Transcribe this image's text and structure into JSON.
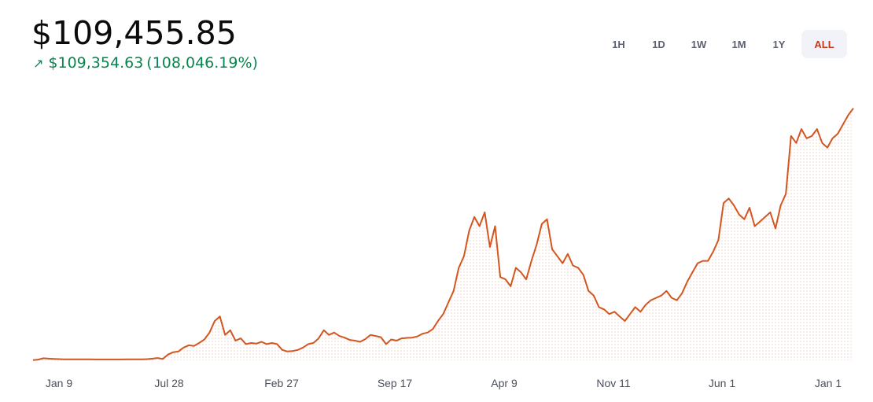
{
  "header": {
    "price": "$109,455.85",
    "change_icon": "arrow-up-right-icon",
    "change_amount": "$109,354.63",
    "change_percent": "(108,046.19%)"
  },
  "timeframes": [
    {
      "label": "1H",
      "active": false
    },
    {
      "label": "1D",
      "active": false
    },
    {
      "label": "1W",
      "active": false
    },
    {
      "label": "1M",
      "active": false
    },
    {
      "label": "1Y",
      "active": false
    },
    {
      "label": "ALL",
      "active": true
    }
  ],
  "colors": {
    "line": "#d35620",
    "positive": "#098551",
    "active_tab": "#c0391b"
  },
  "chart_data": {
    "type": "line",
    "title": "",
    "xlabel": "",
    "ylabel": "",
    "grid": false,
    "x_tick_labels": [
      "Jan 9",
      "Jul 28",
      "Feb 27",
      "Sep 17",
      "Apr 9",
      "Nov 11",
      "Jun 1",
      "Jan 1"
    ],
    "ylim": [
      0,
      115000
    ],
    "series": [
      {
        "name": "",
        "values": [
          100,
          300,
          900,
          700,
          600,
          500,
          450,
          430,
          420,
          410,
          400,
          400,
          390,
          380,
          380,
          380,
          380,
          390,
          400,
          410,
          420,
          450,
          500,
          700,
          1000,
          600,
          2500,
          3500,
          3800,
          5500,
          6500,
          6200,
          7500,
          9000,
          12000,
          17000,
          19000,
          11000,
          13000,
          8500,
          9500,
          7000,
          7500,
          7200,
          8000,
          7000,
          7500,
          7000,
          4500,
          3800,
          4000,
          4500,
          5500,
          7000,
          7500,
          9500,
          13000,
          11000,
          12000,
          10500,
          9800,
          8800,
          8500,
          8000,
          9200,
          11000,
          10500,
          10000,
          7000,
          9000,
          8500,
          9500,
          9700,
          9800,
          10300,
          11500,
          12000,
          13500,
          17000,
          20000,
          25000,
          30000,
          40000,
          45000,
          56000,
          62000,
          58000,
          64000,
          49000,
          58000,
          36000,
          35000,
          32000,
          40000,
          38000,
          35000,
          43000,
          50000,
          59000,
          61000,
          48000,
          45000,
          42000,
          46000,
          41000,
          40000,
          37000,
          30000,
          28000,
          23000,
          22000,
          20000,
          21000,
          19000,
          17000,
          20000,
          23000,
          21000,
          24000,
          26000,
          27000,
          28000,
          30000,
          27000,
          26000,
          29000,
          34000,
          38000,
          42000,
          43000,
          43000,
          47000,
          52000,
          68000,
          70000,
          67000,
          63000,
          61000,
          66000,
          58000,
          60000,
          62000,
          64000,
          57000,
          67000,
          72000,
          97000,
          94000,
          100000,
          96000,
          97000,
          100000,
          94000,
          92000,
          96000,
          98000,
          102000,
          106000,
          109000
        ]
      }
    ]
  }
}
